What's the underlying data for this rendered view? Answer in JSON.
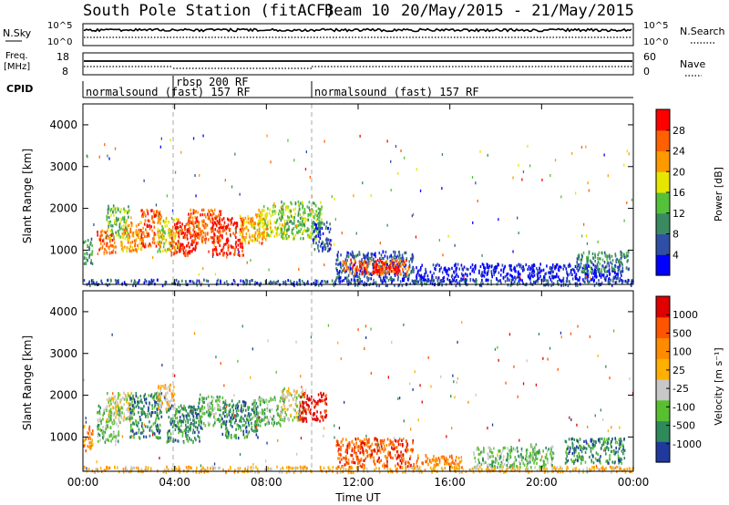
{
  "title": {
    "station": "South Pole Station (fitACF)",
    "beam": "Beam 10",
    "date_range": "20/May/2015 - 21/May/2015"
  },
  "header_panels": {
    "nsky_label": "N.Sky",
    "nsky_ticks": [
      "10^5",
      "10^0"
    ],
    "nsearch_label": "N.Search",
    "nsearch_ticks": [
      "10^5",
      "10^0"
    ],
    "freq_label_line1": "Freq.",
    "freq_label_line2": "[MHz]",
    "freq_ticks": [
      "18",
      "8"
    ],
    "nave_label": "Nave",
    "nave_ticks": [
      "60",
      "0"
    ],
    "cpid_label": "CPID",
    "cpid_segments": [
      {
        "label": "normalsound (fast) 157 RF",
        "start_hour": 0,
        "end_hour": 4
      },
      {
        "label": "rbsp 200 RF",
        "start_hour": 4,
        "end_hour": 10
      },
      {
        "label": "normalsound (fast) 157 RF",
        "start_hour": 10,
        "end_hour": 24
      }
    ]
  },
  "colors": {
    "power": [
      "#0000ff",
      "#2e4fa5",
      "#3a8a5f",
      "#55c03a",
      "#e6e600",
      "#ff9900",
      "#ff6000",
      "#ff0000"
    ],
    "velocity": [
      "#e00000",
      "#ff5500",
      "#ff8c00",
      "#ffb000",
      "#c8c8c8",
      "#58c030",
      "#2e8a5a",
      "#1f3a9c"
    ]
  },
  "chart_data": [
    {
      "type": "heatmap",
      "name_label": "Power",
      "ylabel": "Slant Range [km]",
      "xlabel": "Time UT",
      "x_ticks": [
        "00:00",
        "04:00",
        "08:00",
        "12:00",
        "16:00",
        "20:00",
        "00:00"
      ],
      "xlim_hours": [
        0,
        24
      ],
      "y_ticks": [
        "1000",
        "2000",
        "3000",
        "4000"
      ],
      "ylim_km": [
        180,
        4500
      ],
      "colorbar_label": "Power [dB]",
      "colorbar_ticks": [
        "4",
        "8",
        "12",
        "16",
        "20",
        "24",
        "28"
      ],
      "colorbar_range": [
        0,
        32
      ],
      "regions": [
        {
          "t0": 0.0,
          "t1": 0.4,
          "r0": 700,
          "r1": 1300,
          "level": 2
        },
        {
          "t0": 0.6,
          "t1": 1.4,
          "r0": 900,
          "r1": 1500,
          "level": 6
        },
        {
          "t0": 1.0,
          "t1": 2.0,
          "r0": 1300,
          "r1": 2100,
          "level": 3
        },
        {
          "t0": 1.6,
          "t1": 2.6,
          "r0": 1000,
          "r1": 1700,
          "level": 5
        },
        {
          "t0": 2.5,
          "t1": 3.4,
          "r0": 1100,
          "r1": 2000,
          "level": 6
        },
        {
          "t0": 3.2,
          "t1": 4.2,
          "r0": 1000,
          "r1": 1800,
          "level": 4
        },
        {
          "t0": 3.8,
          "t1": 5.0,
          "r0": 900,
          "r1": 1700,
          "level": 7
        },
        {
          "t0": 4.5,
          "t1": 6.0,
          "r0": 1200,
          "r1": 2000,
          "level": 6
        },
        {
          "t0": 5.6,
          "t1": 7.0,
          "r0": 900,
          "r1": 1800,
          "level": 7
        },
        {
          "t0": 6.8,
          "t1": 8.0,
          "r0": 1200,
          "r1": 1900,
          "level": 5
        },
        {
          "t0": 7.6,
          "t1": 8.9,
          "r0": 1300,
          "r1": 2100,
          "level": 4
        },
        {
          "t0": 8.6,
          "t1": 10.4,
          "r0": 1300,
          "r1": 2200,
          "level": 3
        },
        {
          "t0": 10.0,
          "t1": 10.8,
          "r0": 1000,
          "r1": 1700,
          "level": 1
        },
        {
          "t0": 11.0,
          "t1": 14.4,
          "r0": 300,
          "r1": 1000,
          "level": 1
        },
        {
          "t0": 11.3,
          "t1": 14.2,
          "r0": 450,
          "r1": 800,
          "level": 6
        },
        {
          "t0": 12.6,
          "t1": 13.8,
          "r0": 500,
          "r1": 750,
          "level": 7
        },
        {
          "t0": 14.5,
          "t1": 23.5,
          "r0": 300,
          "r1": 700,
          "level": 0
        },
        {
          "t0": 21.5,
          "t1": 23.8,
          "r0": 500,
          "r1": 1000,
          "level": 2
        },
        {
          "t0": 0.0,
          "t1": 24.0,
          "r0": 180,
          "r1": 320,
          "level": 1
        }
      ]
    },
    {
      "type": "heatmap",
      "name_label": "Velocity",
      "ylabel": "Slant Range [km]",
      "xlabel": "Time UT",
      "x_ticks": [
        "00:00",
        "04:00",
        "08:00",
        "12:00",
        "16:00",
        "20:00",
        "00:00"
      ],
      "xlim_hours": [
        0,
        24
      ],
      "y_ticks": [
        "1000",
        "2000",
        "3000",
        "4000"
      ],
      "ylim_km": [
        180,
        4500
      ],
      "colorbar_label": "Velocity [m s⁻¹]",
      "colorbar_ticks": [
        "-1000",
        "-500",
        "-100",
        "-25",
        "25",
        "100",
        "500",
        "1000"
      ],
      "colorbar_range": [
        -1200,
        1200
      ],
      "regions": [
        {
          "t0": 0.0,
          "t1": 0.4,
          "r0": 700,
          "r1": 1300,
          "level": 5
        },
        {
          "t0": 0.6,
          "t1": 1.6,
          "r0": 900,
          "r1": 1800,
          "level": 2
        },
        {
          "t0": 1.0,
          "t1": 2.2,
          "r0": 1400,
          "r1": 2100,
          "level": 3
        },
        {
          "t0": 2.0,
          "t1": 3.4,
          "r0": 1000,
          "r1": 2100,
          "level": 1
        },
        {
          "t0": 3.2,
          "t1": 4.0,
          "r0": 1700,
          "r1": 2300,
          "level": 4
        },
        {
          "t0": 3.6,
          "t1": 5.2,
          "r0": 900,
          "r1": 1800,
          "level": 1
        },
        {
          "t0": 5.0,
          "t1": 6.2,
          "r0": 1300,
          "r1": 2000,
          "level": 2
        },
        {
          "t0": 6.0,
          "t1": 7.6,
          "r0": 1000,
          "r1": 1900,
          "level": 1
        },
        {
          "t0": 7.4,
          "t1": 8.8,
          "r0": 1300,
          "r1": 2000,
          "level": 2
        },
        {
          "t0": 8.6,
          "t1": 9.6,
          "r0": 1400,
          "r1": 2200,
          "level": 3
        },
        {
          "t0": 9.4,
          "t1": 10.6,
          "r0": 1400,
          "r1": 2100,
          "level": 7
        },
        {
          "t0": 11.0,
          "t1": 14.4,
          "r0": 300,
          "r1": 1000,
          "level": 6
        },
        {
          "t0": 14.5,
          "t1": 16.5,
          "r0": 300,
          "r1": 600,
          "level": 5
        },
        {
          "t0": 17.0,
          "t1": 20.5,
          "r0": 300,
          "r1": 800,
          "level": 2
        },
        {
          "t0": 21.0,
          "t1": 23.6,
          "r0": 400,
          "r1": 1000,
          "level": 1
        },
        {
          "t0": 0.0,
          "t1": 24.0,
          "r0": 180,
          "r1": 320,
          "level": 4
        }
      ]
    }
  ]
}
